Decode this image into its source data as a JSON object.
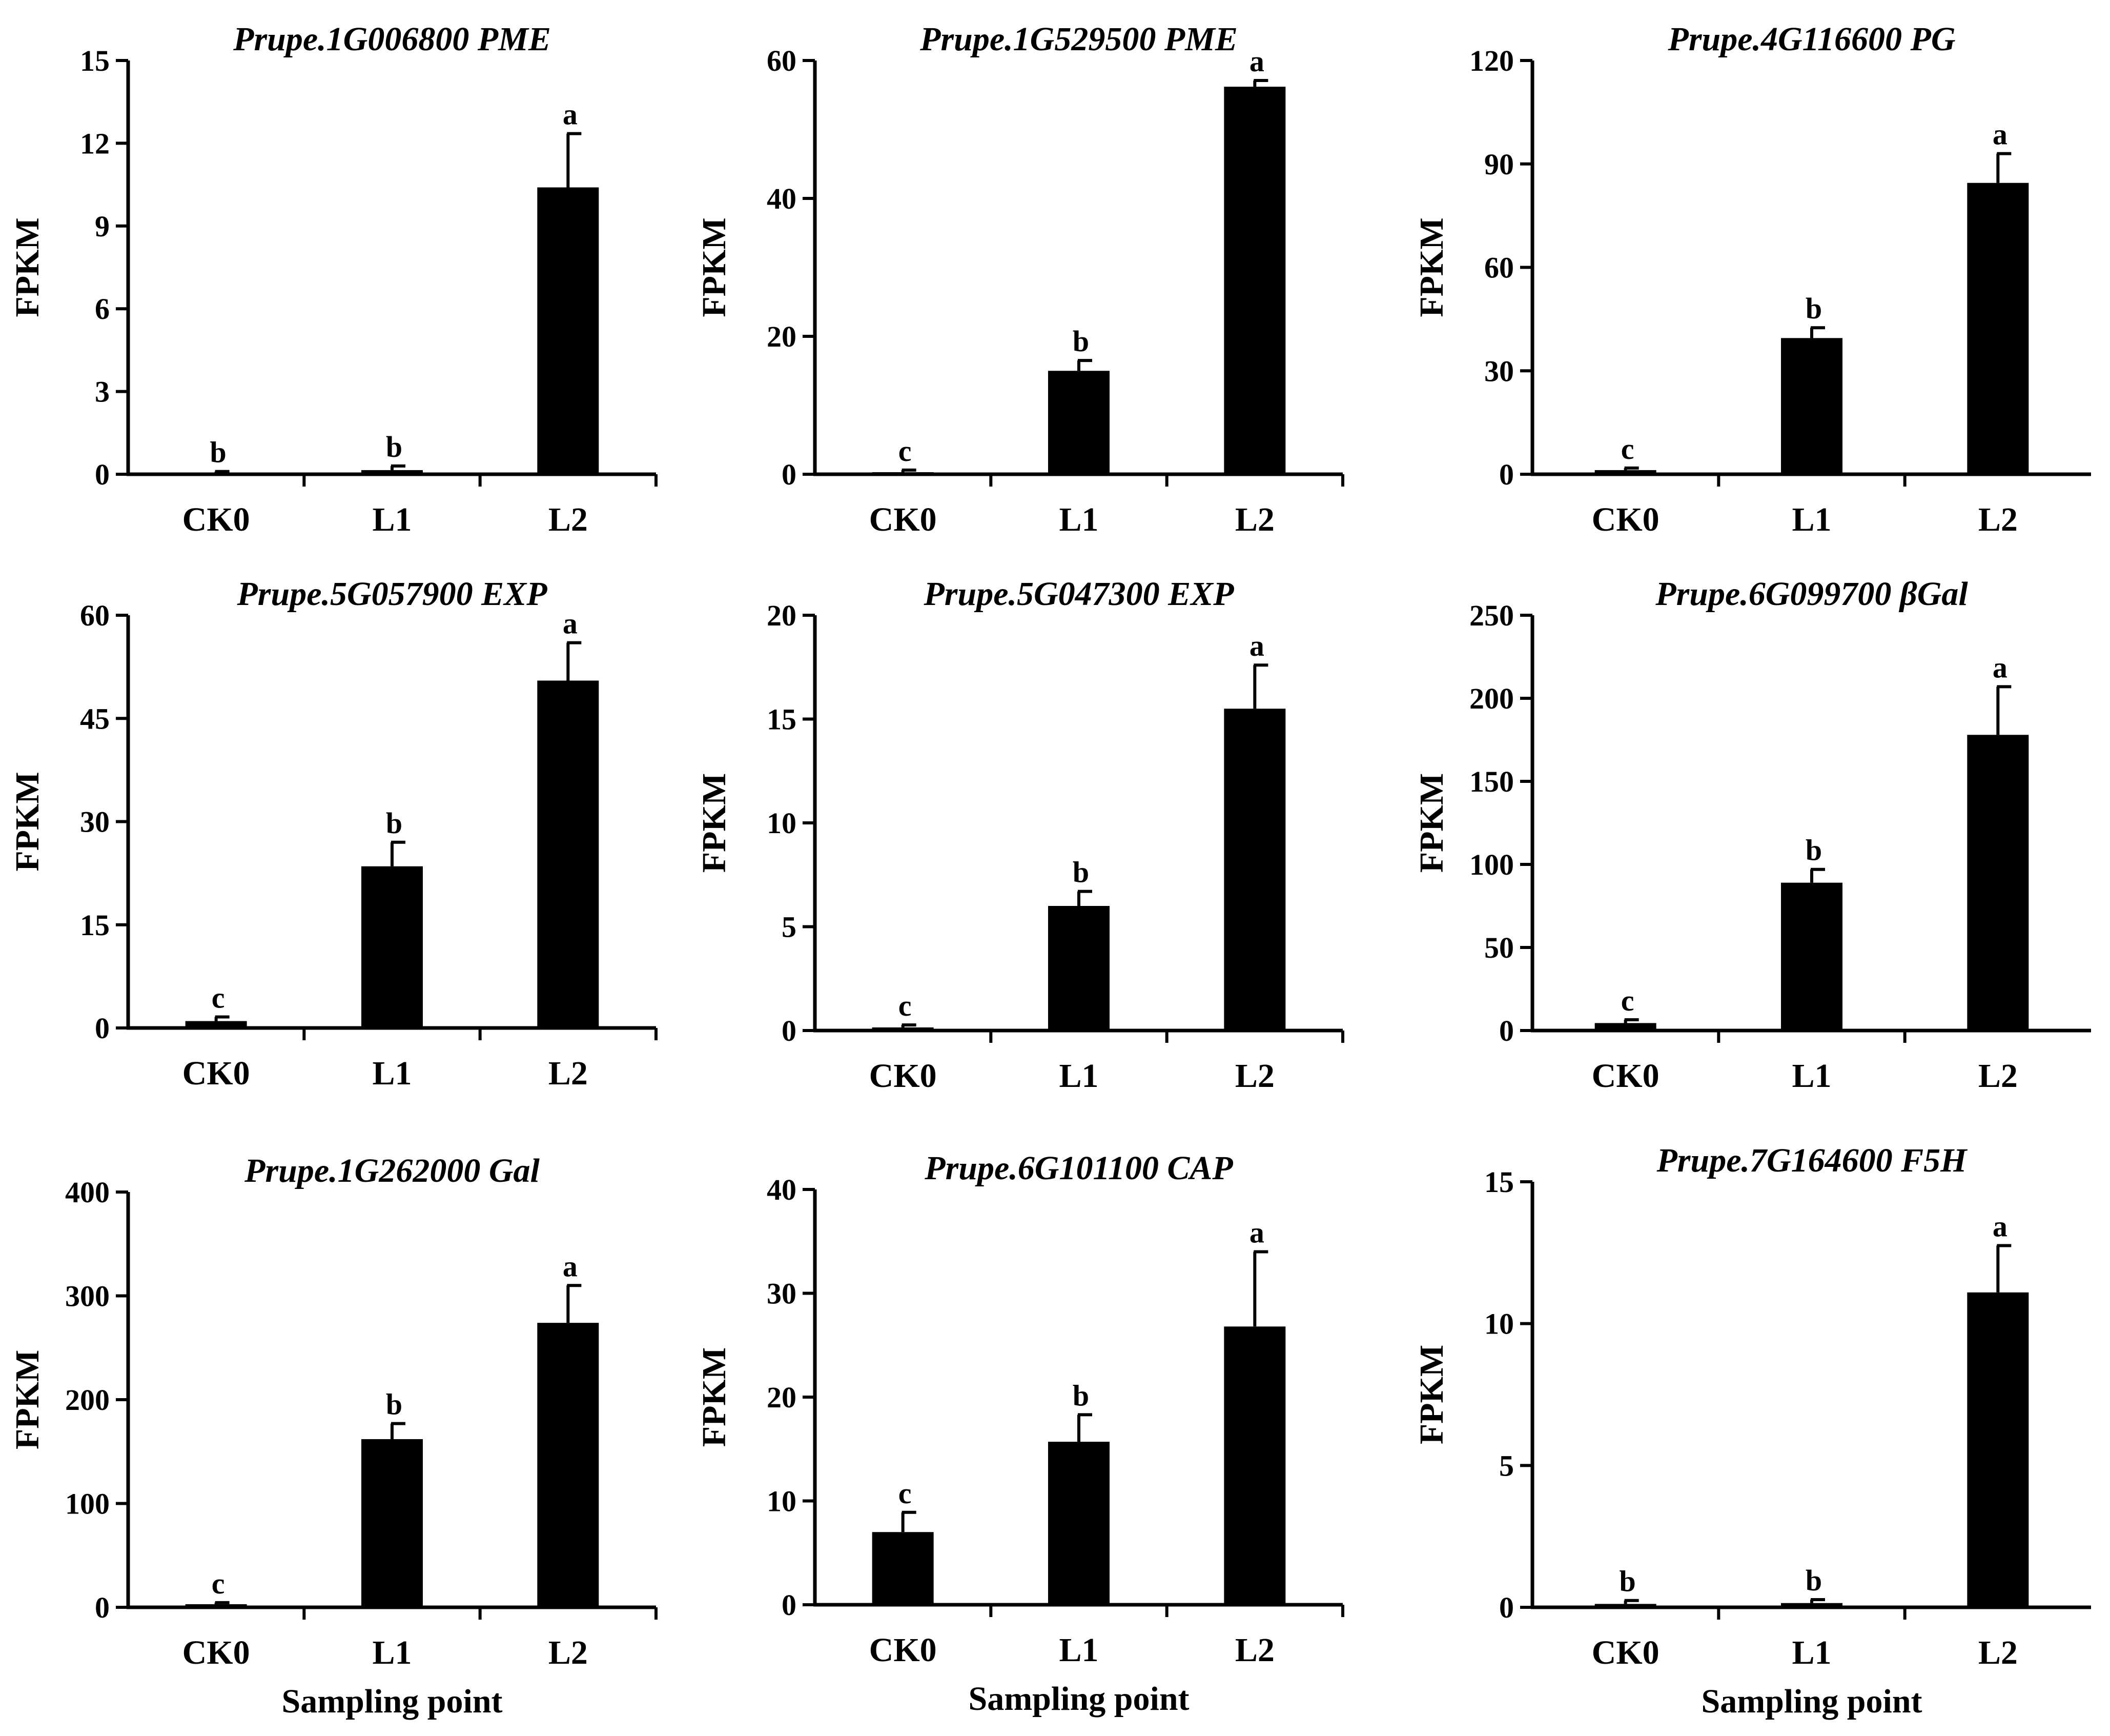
{
  "figure": {
    "x_label": "Sampling point"
  },
  "chart_data": [
    {
      "type": "bar",
      "title": "Prupe.1G006800 PME",
      "ylabel": "FPKM",
      "xlabel": "",
      "categories": [
        "CK0",
        "L1",
        "L2"
      ],
      "values": [
        0.05,
        0.15,
        10.4
      ],
      "errors": [
        0.05,
        0.15,
        1.95
      ],
      "significance": [
        "b",
        "b",
        "a"
      ],
      "ylim": [
        0,
        15
      ],
      "yticks": [
        0,
        3,
        6,
        9,
        12,
        15
      ]
    },
    {
      "type": "bar",
      "title": "Prupe.1G529500 PME",
      "ylabel": "FPKM",
      "xlabel": "",
      "categories": [
        "CK0",
        "L1",
        "L2"
      ],
      "values": [
        0.3,
        15,
        56.2
      ],
      "errors": [
        0.3,
        1.5,
        0.9
      ],
      "significance": [
        "c",
        "b",
        "a"
      ],
      "ylim": [
        0,
        60
      ],
      "yticks": [
        0,
        20,
        40,
        60
      ]
    },
    {
      "type": "bar",
      "title": "Prupe.4G116600 PG",
      "ylabel": "FPKM",
      "xlabel": "",
      "categories": [
        "CK0",
        "L1",
        "L2"
      ],
      "values": [
        1.2,
        39.5,
        84.5
      ],
      "errors": [
        0.6,
        3,
        8.5
      ],
      "significance": [
        "c",
        "b",
        "a"
      ],
      "ylim": [
        0,
        120
      ],
      "yticks": [
        0,
        30,
        60,
        90,
        120
      ]
    },
    {
      "type": "bar",
      "title": "Prupe.5G057900 EXP",
      "ylabel": "FPKM",
      "xlabel": "",
      "categories": [
        "CK0",
        "L1",
        "L2"
      ],
      "values": [
        1,
        23.5,
        50.5
      ],
      "errors": [
        0.6,
        3.5,
        5.5
      ],
      "significance": [
        "c",
        "b",
        "a"
      ],
      "ylim": [
        0,
        60
      ],
      "yticks": [
        0,
        15,
        30,
        45,
        60
      ]
    },
    {
      "type": "bar",
      "title": "Prupe.5G047300 EXP",
      "ylabel": "FPKM",
      "xlabel": "",
      "categories": [
        "CK0",
        "L1",
        "L2"
      ],
      "values": [
        0.15,
        6,
        15.5
      ],
      "errors": [
        0.12,
        0.7,
        2.1
      ],
      "significance": [
        "c",
        "b",
        "a"
      ],
      "ylim": [
        0,
        20
      ],
      "yticks": [
        0,
        5,
        10,
        15,
        20
      ]
    },
    {
      "type": "bar",
      "title": "Prupe.6G099700 βGal",
      "ylabel": "FPKM",
      "xlabel": "",
      "categories": [
        "CK0",
        "L1",
        "L2"
      ],
      "values": [
        4.5,
        89,
        178
      ],
      "errors": [
        2,
        8,
        29
      ],
      "significance": [
        "c",
        "b",
        "a"
      ],
      "ylim": [
        0,
        250
      ],
      "yticks": [
        0,
        50,
        100,
        150,
        200,
        250
      ]
    },
    {
      "type": "bar",
      "title": "Prupe.1G262000 Gal",
      "ylabel": "FPKM",
      "xlabel": "Sampling point",
      "categories": [
        "CK0",
        "L1",
        "L2"
      ],
      "values": [
        3,
        162,
        274
      ],
      "errors": [
        1.5,
        15,
        36
      ],
      "significance": [
        "c",
        "b",
        "a"
      ],
      "ylim": [
        0,
        400
      ],
      "yticks": [
        0,
        100,
        200,
        300,
        400
      ]
    },
    {
      "type": "bar",
      "title": "Prupe.6G101100 CAP",
      "ylabel": "FPKM",
      "xlabel": "Sampling point",
      "categories": [
        "CK0",
        "L1",
        "L2"
      ],
      "values": [
        7,
        15.7,
        26.8
      ],
      "errors": [
        1.9,
        2.6,
        7.2
      ],
      "significance": [
        "c",
        "b",
        "a"
      ],
      "ylim": [
        0,
        40
      ],
      "yticks": [
        0,
        10,
        20,
        30,
        40
      ]
    },
    {
      "type": "bar",
      "title": "Prupe.7G164600 F5H",
      "ylabel": "FPKM",
      "xlabel": "Sampling point",
      "categories": [
        "CK0",
        "L1",
        "L2"
      ],
      "values": [
        0.12,
        0.15,
        11.1
      ],
      "errors": [
        0.12,
        0.12,
        1.65
      ],
      "significance": [
        "b",
        "b",
        "a"
      ],
      "ylim": [
        0,
        15
      ],
      "yticks": [
        0,
        5,
        10,
        15
      ]
    }
  ]
}
